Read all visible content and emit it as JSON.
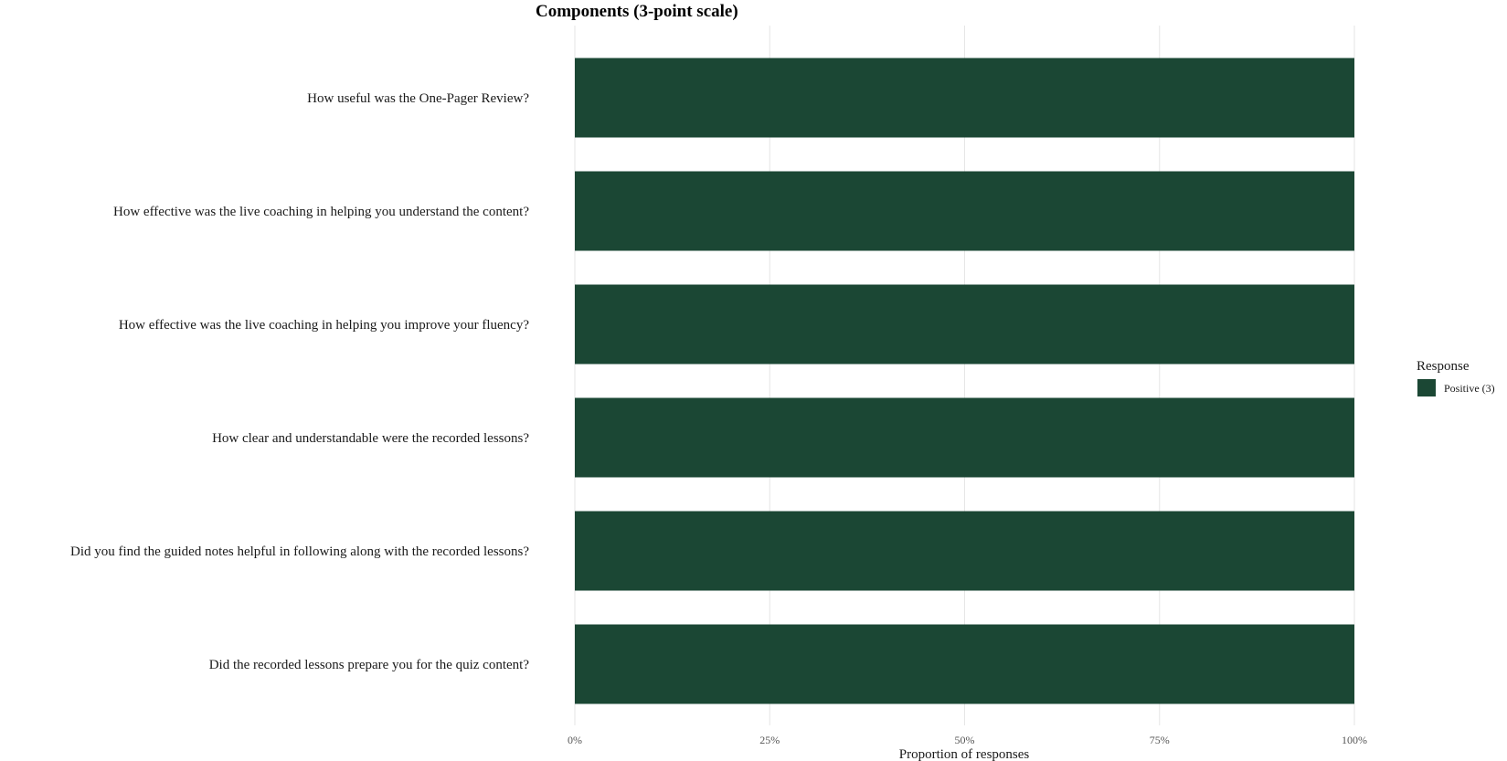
{
  "chart_data": {
    "type": "bar",
    "orientation": "horizontal",
    "stacked": true,
    "title": "Components (3-point scale)",
    "xlabel": "Proportion of responses",
    "ylabel": "",
    "xlim": [
      0,
      1
    ],
    "x_ticks": [
      0,
      0.25,
      0.5,
      0.75,
      1
    ],
    "x_tick_labels": [
      "0%",
      "25%",
      "50%",
      "75%",
      "100%"
    ],
    "grid": true,
    "legend": {
      "title": "Response",
      "position": "right"
    },
    "categories": [
      "How useful was the One-Pager Review?",
      "How effective was the live coaching in helping you understand the content?",
      "How effective was the live coaching in helping you improve your fluency?",
      "How clear and understandable were the recorded lessons?",
      "Did you find the guided notes helpful in following along with the recorded lessons?",
      "Did the recorded lessons prepare you for the quiz content?"
    ],
    "series": [
      {
        "name": "Positive (3)",
        "color": "#1b4734",
        "values": [
          1,
          1,
          1,
          1,
          1,
          1
        ]
      }
    ]
  }
}
